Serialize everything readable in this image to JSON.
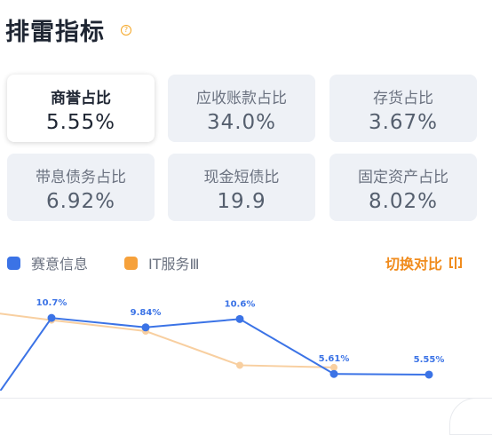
{
  "section_title": "排雷指标",
  "help_icon": "?",
  "metrics": [
    {
      "label": "商誉占比",
      "value": "5.55%",
      "active": true
    },
    {
      "label": "应收账款占比",
      "value": "34.0%",
      "active": false
    },
    {
      "label": "存货占比",
      "value": "3.67%",
      "active": false
    },
    {
      "label": "带息债务占比",
      "value": "6.92%",
      "active": false
    },
    {
      "label": "现金短债比",
      "value": "19.9",
      "active": false
    },
    {
      "label": "固定资产占比",
      "value": "8.02%",
      "active": false
    }
  ],
  "legend": {
    "series1": "赛意信息",
    "series2": "IT服务Ⅲ",
    "color1": "#3b73e6",
    "color2": "#f6a13b"
  },
  "toggle_label": "切换对比",
  "chart_data": {
    "type": "line",
    "series": [
      {
        "name": "赛意信息",
        "values": [
          null,
          10.7,
          9.84,
          10.6,
          5.61,
          5.55
        ],
        "labels": [
          "",
          "10.7%",
          "9.84%",
          "10.6%",
          "5.61%",
          "5.55%"
        ]
      },
      {
        "name": "IT服务Ⅲ",
        "values": [
          null,
          10.5,
          9.5,
          6.4,
          6.2,
          null
        ]
      }
    ]
  }
}
